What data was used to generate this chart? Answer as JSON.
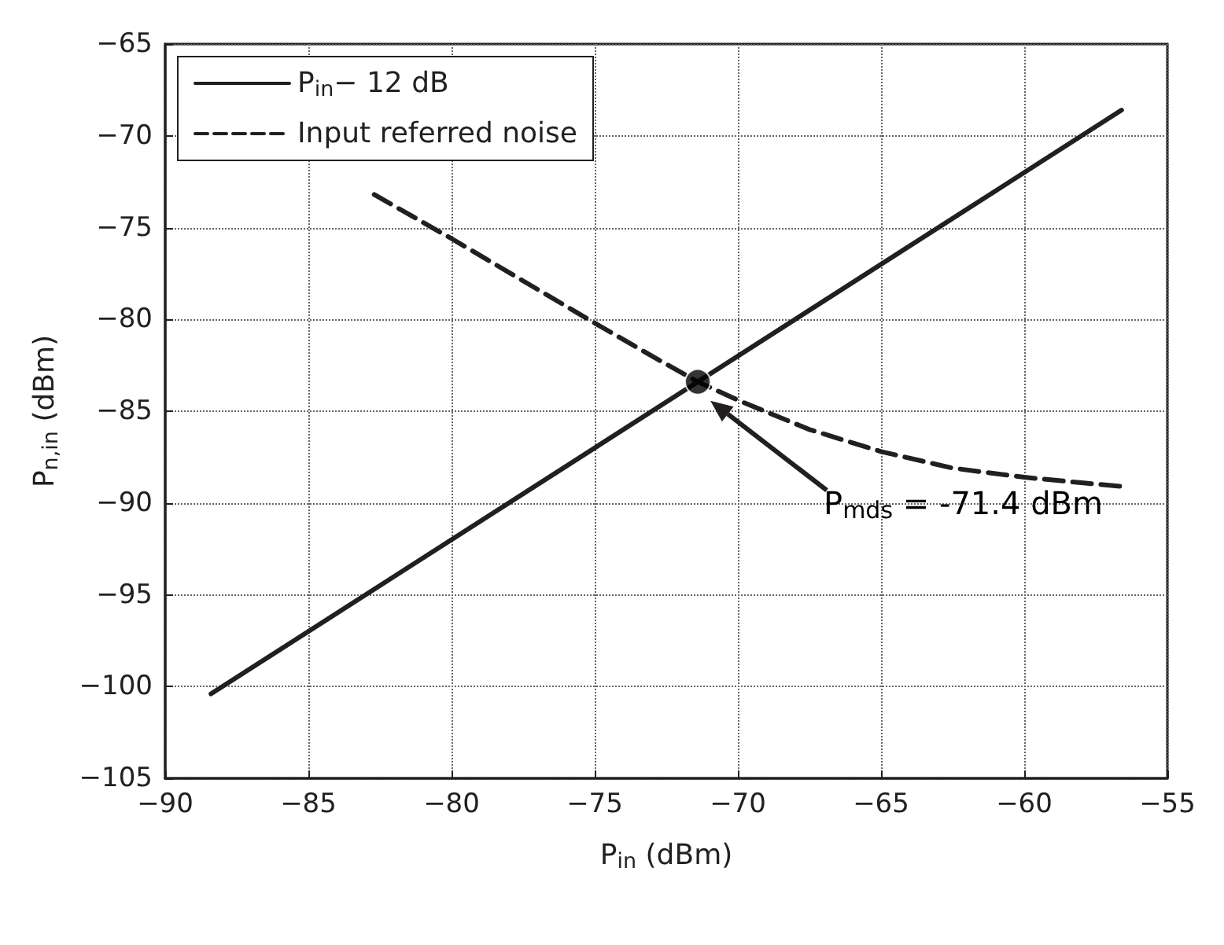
{
  "chart_data": {
    "type": "line",
    "xlabel": "P$_{in}$ (dBm)",
    "ylabel": "P$_{n,in}$ (dBm)",
    "xlim": [
      -90,
      -55
    ],
    "xticks": [
      -90,
      -85,
      -80,
      -75,
      -70,
      -65,
      -60,
      -55
    ],
    "ylim": [
      -105,
      -65
    ],
    "yticks": [
      -105,
      -100,
      -95,
      -90,
      -85,
      -80,
      -75,
      -70,
      -65
    ],
    "grid": true,
    "legend": "top left",
    "series": [
      {
        "name": "P$_{in}$− 12 dB",
        "color": "#231f20",
        "line_style": "solid",
        "x": [
          -88.4,
          -56.6
        ],
        "values": [
          -100.4,
          -68.6
        ]
      },
      {
        "name": "Input referred noise",
        "color": "#231f20",
        "line_style": "dashed",
        "x": [
          -82.7,
          -80,
          -77.5,
          -75,
          -73,
          -71.4,
          -70,
          -67.5,
          -65,
          -62.5,
          -60,
          -58,
          -56.6
        ],
        "values": [
          -73.2,
          -75.6,
          -77.9,
          -80.2,
          -82,
          -83.4,
          -84.4,
          -86,
          -87.2,
          -88.1,
          -88.6,
          -88.9,
          -89.1
        ]
      },
      {
        "type": "scatter",
        "color": "#000000",
        "marker": "circle",
        "x": [
          -71.4
        ],
        "values": [
          -83.4
        ]
      }
    ],
    "annotations": [
      "P$_{mds}$ = -71.4 dBm"
    ]
  }
}
